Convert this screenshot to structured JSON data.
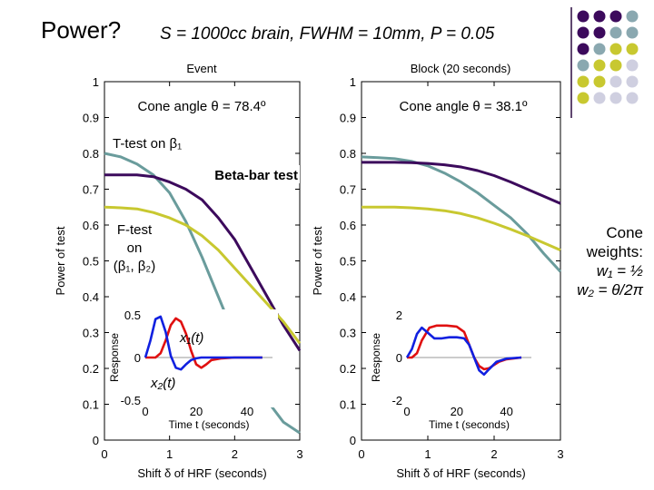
{
  "slide": {
    "title": "Power?",
    "subtitle": "S = 1000cc brain, FWHM = 10mm, P = 0.05",
    "cone_weights": {
      "heading": "Cone weights:",
      "w1": "w₁ = ½",
      "w2": "w₂ = θ/2π"
    }
  },
  "colors": {
    "ttest": "#6a9c9c",
    "beta_bar": "#3c0a5c",
    "ftest": "#c8c830",
    "x1": "#e01010",
    "x2": "#1020e0",
    "grid_purple": "#3c0a5c",
    "grid_teal": "#8aa8b0",
    "grid_yellow": "#c8c830",
    "grid_light": "#cfcfe0"
  },
  "chart_data": [
    {
      "type": "line",
      "title": "Event",
      "subtitle": "Cone angle θ = 78.4º",
      "xlabel": "Shift δ of HRF (seconds)",
      "ylabel": "Power of test",
      "xlim": [
        0,
        3
      ],
      "ylim": [
        0,
        1
      ],
      "xticks": [
        "0",
        "1",
        "2",
        "3"
      ],
      "yticks": [
        "0",
        "0.1",
        "0.2",
        "0.3",
        "0.4",
        "0.5",
        "0.6",
        "0.7",
        "0.8",
        "0.9",
        "1"
      ],
      "annotations": {
        "ttest": "T-test on β₁",
        "betabar": "Beta-bar test",
        "ftest_1": "F-test",
        "ftest_2": "on",
        "ftest_3": "(β₁, β₂)"
      },
      "series": [
        {
          "key": "ttest",
          "x": [
            0,
            0.25,
            0.5,
            0.75,
            1.0,
            1.25,
            1.5,
            1.75,
            2.0,
            2.25,
            2.5,
            2.75,
            3.0
          ],
          "y": [
            0.8,
            0.79,
            0.77,
            0.74,
            0.69,
            0.61,
            0.51,
            0.4,
            0.29,
            0.19,
            0.11,
            0.05,
            0.02
          ]
        },
        {
          "key": "beta_bar",
          "x": [
            0,
            0.25,
            0.5,
            0.75,
            1.0,
            1.25,
            1.5,
            1.75,
            2.0,
            2.25,
            2.5,
            2.75,
            3.0
          ],
          "y": [
            0.74,
            0.74,
            0.74,
            0.735,
            0.72,
            0.7,
            0.67,
            0.62,
            0.56,
            0.48,
            0.4,
            0.32,
            0.25
          ]
        },
        {
          "key": "ftest",
          "x": [
            0,
            0.25,
            0.5,
            0.75,
            1.0,
            1.25,
            1.5,
            1.75,
            2.0,
            2.25,
            2.5,
            2.75,
            3.0
          ],
          "y": [
            0.65,
            0.648,
            0.645,
            0.635,
            0.62,
            0.6,
            0.57,
            0.53,
            0.48,
            0.43,
            0.38,
            0.33,
            0.27
          ]
        }
      ],
      "inset": {
        "xlabel": "Time t (seconds)",
        "ylabel": "Response",
        "xlim": [
          0,
          50
        ],
        "ylim": [
          -0.5,
          0.5
        ],
        "xticks": [
          "0",
          "20",
          "40"
        ],
        "yticks": [
          "-0.5",
          "0",
          "0.5"
        ],
        "labels": {
          "x1": "x₁(t)",
          "x2": "x₂(t)"
        },
        "series": [
          {
            "key": "x1",
            "x": [
              0,
              2,
              4,
              6,
              8,
              10,
              12,
              14,
              16,
              18,
              20,
              22,
              24,
              26,
              30,
              35,
              40,
              46
            ],
            "y": [
              0,
              0,
              0,
              0.05,
              0.2,
              0.38,
              0.46,
              0.42,
              0.28,
              0.08,
              -0.08,
              -0.12,
              -0.08,
              -0.03,
              -0.01,
              0,
              0,
              0
            ]
          },
          {
            "key": "x2",
            "x": [
              0,
              2,
              4,
              6,
              8,
              10,
              12,
              14,
              16,
              18,
              20,
              22,
              26,
              30,
              35,
              40,
              46
            ],
            "y": [
              0,
              0.2,
              0.45,
              0.48,
              0.3,
              0.02,
              -0.12,
              -0.14,
              -0.08,
              -0.03,
              -0.01,
              0,
              0,
              0,
              0,
              0,
              0
            ]
          }
        ]
      }
    },
    {
      "type": "line",
      "title": "Block (20 seconds)",
      "subtitle": "Cone angle θ = 38.1º",
      "xlabel": "Shift δ of HRF (seconds)",
      "ylabel": "Power of test",
      "xlim": [
        0,
        3
      ],
      "ylim": [
        0,
        1
      ],
      "xticks": [
        "0",
        "1",
        "2",
        "3"
      ],
      "yticks": [
        "0",
        "0.1",
        "0.2",
        "0.3",
        "0.4",
        "0.5",
        "0.6",
        "0.7",
        "0.8",
        "0.9",
        "1"
      ],
      "series": [
        {
          "key": "ttest",
          "x": [
            0,
            0.25,
            0.5,
            0.75,
            1.0,
            1.25,
            1.5,
            1.75,
            2.0,
            2.25,
            2.5,
            2.75,
            3.0
          ],
          "y": [
            0.79,
            0.788,
            0.785,
            0.778,
            0.765,
            0.745,
            0.72,
            0.69,
            0.655,
            0.62,
            0.575,
            0.52,
            0.47
          ]
        },
        {
          "key": "beta_bar",
          "x": [
            0,
            0.25,
            0.5,
            0.75,
            1.0,
            1.25,
            1.5,
            1.75,
            2.0,
            2.25,
            2.5,
            2.75,
            3.0
          ],
          "y": [
            0.775,
            0.775,
            0.775,
            0.774,
            0.772,
            0.768,
            0.762,
            0.752,
            0.738,
            0.72,
            0.7,
            0.68,
            0.66
          ]
        },
        {
          "key": "ftest",
          "x": [
            0,
            0.25,
            0.5,
            0.75,
            1.0,
            1.25,
            1.5,
            1.75,
            2.0,
            2.25,
            2.5,
            2.75,
            3.0
          ],
          "y": [
            0.65,
            0.65,
            0.65,
            0.648,
            0.645,
            0.64,
            0.632,
            0.62,
            0.605,
            0.588,
            0.57,
            0.55,
            0.53
          ]
        }
      ],
      "inset": {
        "xlabel": "Time t (seconds)",
        "ylabel": "Response",
        "xlim": [
          0,
          50
        ],
        "ylim": [
          -2,
          2
        ],
        "xticks": [
          "0",
          "20",
          "40"
        ],
        "yticks": [
          "-2",
          "0",
          "2"
        ],
        "series": [
          {
            "key": "x1",
            "x": [
              0,
              2,
              4,
              6,
              9,
              12,
              16,
              20,
              23,
              25,
              27,
              29,
              31,
              33,
              35,
              37,
              40,
              46
            ],
            "y": [
              0,
              0,
              0.2,
              0.8,
              1.4,
              1.5,
              1.5,
              1.45,
              1.2,
              0.6,
              0.0,
              -0.4,
              -0.55,
              -0.5,
              -0.35,
              -0.2,
              -0.08,
              0
            ]
          },
          {
            "key": "x2",
            "x": [
              0,
              2,
              4,
              6,
              8,
              11,
              14,
              17,
              20,
              23,
              25,
              27,
              29,
              31,
              33,
              36,
              40,
              46
            ],
            "y": [
              0,
              0.4,
              1.1,
              1.4,
              1.2,
              0.9,
              0.9,
              0.95,
              0.95,
              0.9,
              0.6,
              0.0,
              -0.6,
              -0.8,
              -0.55,
              -0.2,
              -0.05,
              0
            ]
          }
        ]
      }
    }
  ]
}
